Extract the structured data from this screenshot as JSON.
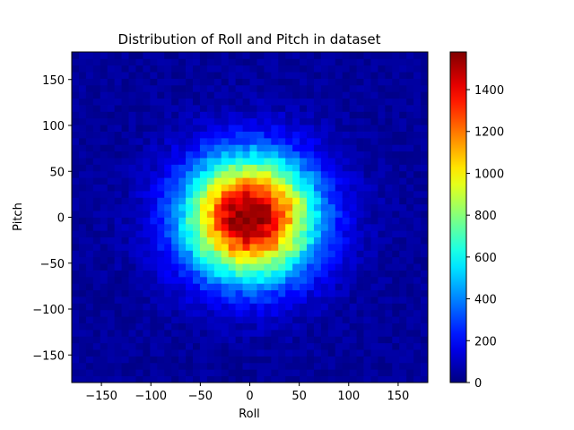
{
  "chart_data": {
    "type": "heatmap",
    "title": "Distribution of Roll and Pitch in dataset",
    "xlabel": "Roll",
    "ylabel": "Pitch",
    "xlim": [
      -180,
      180
    ],
    "ylim": [
      -180,
      180
    ],
    "bins": 50,
    "x_ticks": [
      -150,
      -100,
      -50,
      0,
      50,
      100,
      150
    ],
    "y_ticks": [
      -150,
      -100,
      -50,
      0,
      50,
      100,
      150
    ],
    "x_tick_labels": [
      "−150",
      "−100",
      "−50",
      "0",
      "50",
      "100",
      "150"
    ],
    "y_tick_labels": [
      "−150",
      "−100",
      "−50",
      "0",
      "50",
      "100",
      "150"
    ],
    "distribution": {
      "shape": "2D Gaussian",
      "center": [
        0,
        0
      ],
      "std_roll": 45,
      "std_pitch": 45,
      "peak_count": 1570
    },
    "colorbar": {
      "colormap": "jet",
      "range": [
        0,
        1580
      ],
      "ticks": [
        0,
        200,
        400,
        600,
        800,
        1000,
        1200,
        1400
      ],
      "tick_labels": [
        "0",
        "200",
        "400",
        "600",
        "800",
        "1000",
        "1200",
        "1400"
      ]
    },
    "grid": false
  }
}
